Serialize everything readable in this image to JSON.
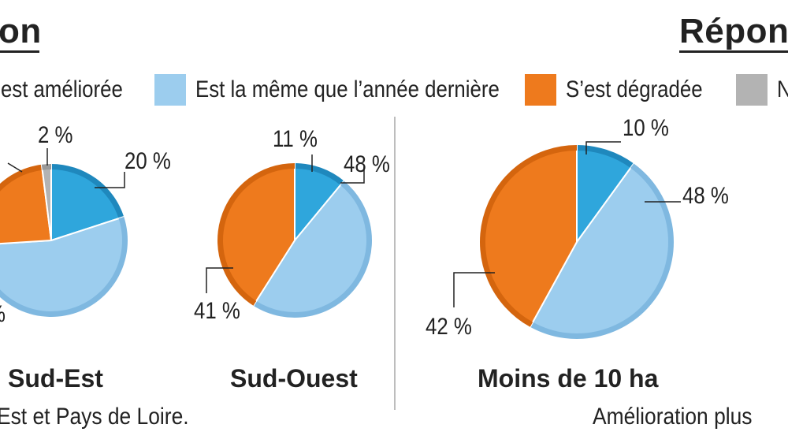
{
  "colors": {
    "ameliore": "#2fa6dc",
    "meme": "#9ccdee",
    "degrade": "#ee7a1d",
    "ns": "#b3b3b3",
    "text": "#222222"
  },
  "titles": {
    "left": "on",
    "right": "Répons"
  },
  "legend": [
    {
      "key": "ameliore",
      "label": "S’est améliorée",
      "icon": "swatch-blue"
    },
    {
      "key": "meme",
      "label": "Est la même que l’année dernière",
      "icon": "swatch-light-blue"
    },
    {
      "key": "degrade",
      "label": "S’est  dégradée",
      "icon": "swatch-orange"
    },
    {
      "key": "ns",
      "label": "N",
      "icon": "swatch-grey"
    }
  ],
  "footnotes": {
    "left": "Est et Pays de Loire.",
    "right": "Amélioration plus"
  },
  "chart_data": [
    {
      "type": "pie",
      "title": "Sud-Est",
      "slices": [
        {
          "key": "ameliore",
          "value": 20,
          "label": "20 %"
        },
        {
          "key": "meme",
          "value": 54,
          "label": ""
        },
        {
          "key": "degrade",
          "value": 24,
          "label": ""
        },
        {
          "key": "ns",
          "value": 2,
          "label": "2 %"
        }
      ],
      "partial_label": "%"
    },
    {
      "type": "pie",
      "title": "Sud-Ouest",
      "slices": [
        {
          "key": "ameliore",
          "value": 11,
          "label": "11 %"
        },
        {
          "key": "meme",
          "value": 48,
          "label": "48 %"
        },
        {
          "key": "degrade",
          "value": 41,
          "label": "41 %"
        }
      ]
    },
    {
      "type": "pie",
      "title": "Moins de 10 ha",
      "slices": [
        {
          "key": "ameliore",
          "value": 10,
          "label": "10 %"
        },
        {
          "key": "meme",
          "value": 48,
          "label": "48 %"
        },
        {
          "key": "degrade",
          "value": 42,
          "label": "42 %"
        }
      ]
    }
  ]
}
